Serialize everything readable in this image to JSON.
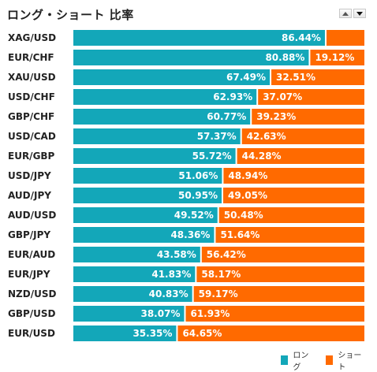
{
  "title": "ロング・ショート 比率",
  "colors": {
    "long": "#13a7b9",
    "short": "#ff6a00"
  },
  "legend": {
    "long_label": "ロング",
    "short_label": "ショート"
  },
  "chart_data": {
    "type": "bar",
    "orientation": "horizontal",
    "stacked": true,
    "categories": [
      "XAG/USD",
      "EUR/CHF",
      "XAU/USD",
      "USD/CHF",
      "GBP/CHF",
      "USD/CAD",
      "EUR/GBP",
      "USD/JPY",
      "AUD/JPY",
      "AUD/USD",
      "GBP/JPY",
      "EUR/AUD",
      "EUR/JPY",
      "NZD/USD",
      "GBP/USD",
      "EUR/USD"
    ],
    "series": [
      {
        "name": "ロング",
        "values": [
          86.44,
          80.88,
          67.49,
          62.93,
          60.77,
          57.37,
          55.72,
          51.06,
          50.95,
          49.52,
          48.36,
          43.58,
          41.83,
          40.83,
          38.07,
          35.35
        ]
      },
      {
        "name": "ショート",
        "values": [
          13.56,
          19.12,
          32.51,
          37.07,
          39.23,
          42.63,
          44.28,
          48.94,
          49.05,
          50.48,
          51.64,
          56.42,
          58.17,
          59.17,
          61.93,
          64.65
        ]
      }
    ],
    "labels": {
      "long": [
        "86.44%",
        "80.88%",
        "67.49%",
        "62.93%",
        "60.77%",
        "57.37%",
        "55.72%",
        "51.06%",
        "50.95%",
        "49.52%",
        "48.36%",
        "43.58%",
        "41.83%",
        "40.83%",
        "38.07%",
        "35.35%"
      ],
      "short": [
        "",
        "19.12%",
        "32.51%",
        "37.07%",
        "39.23%",
        "42.63%",
        "44.28%",
        "48.94%",
        "49.05%",
        "50.48%",
        "51.64%",
        "56.42%",
        "58.17%",
        "59.17%",
        "61.93%",
        "64.65%"
      ]
    },
    "xlim": [
      0,
      100
    ],
    "legend_position": "bottom-right"
  }
}
